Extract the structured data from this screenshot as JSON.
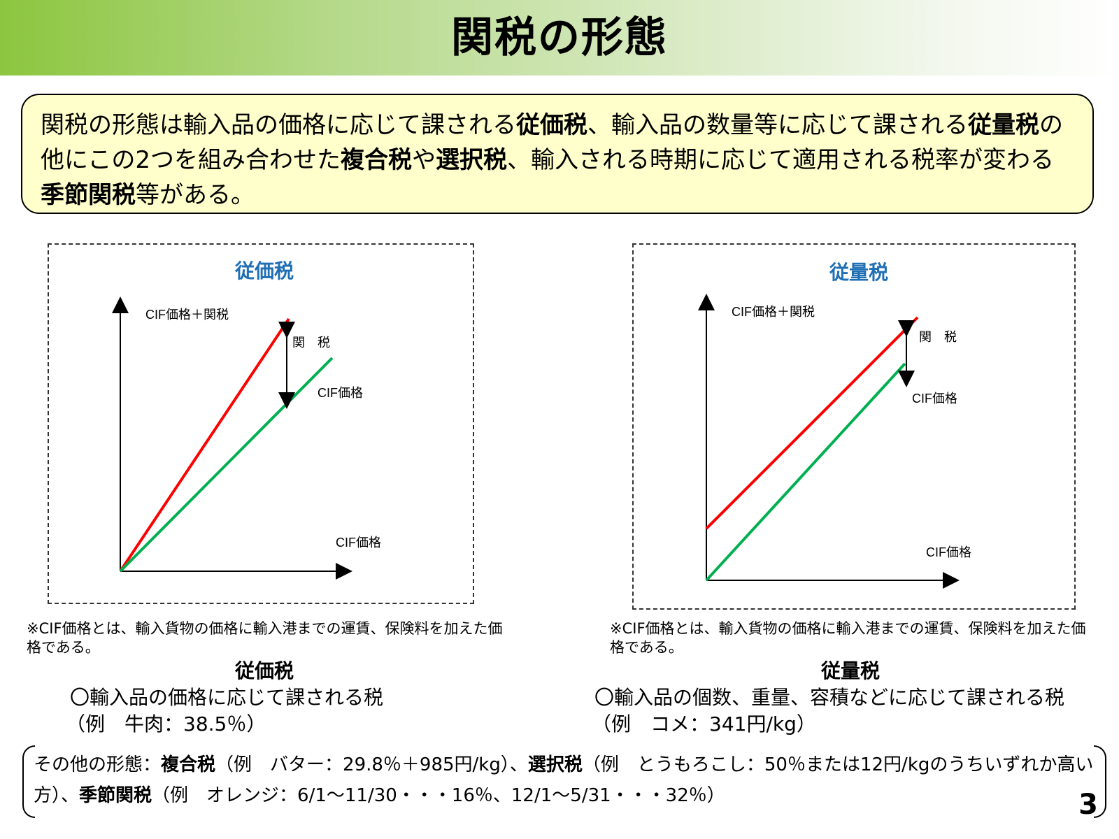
{
  "header": {
    "title": "関税の形態"
  },
  "summary": {
    "parts": [
      "関税の形態は輸入品の価格に応じて課される",
      "従価税",
      "、輸入品の数量等に応じて課される",
      "従量税",
      "の他にこの2つを組み合わせた",
      "複合税",
      "や",
      "選択税",
      "、輸入される時期に応じて適用される税率が変わる",
      "季節関税",
      "等がある。"
    ]
  },
  "panels": [
    {
      "title": "従価税",
      "y_axis_label": "CIF価格＋関税",
      "x_axis_label": "CIF価格",
      "tax_label": "関　税",
      "cif_line_label": "CIF価格",
      "note": "※CIF価格とは、輸入貨物の価格に輸入港までの運賃、保険料を加えた価格である。",
      "desc_title": "従価税",
      "desc_line1": "〇輸入品の価格に応じて課される税",
      "desc_line2": "（例　牛肉：38.5％）"
    },
    {
      "title": "従量税",
      "y_axis_label": "CIF価格＋関税",
      "x_axis_label": "CIF価格",
      "tax_label": "関　税",
      "cif_line_label": "CIF価格",
      "note": "※CIF価格とは、輸入貨物の価格に輸入港までの運賃、保険料を加えた価格である。",
      "desc_title": "従量税",
      "desc_line1": "〇輸入品の個数、重量、容積などに応じて課される税",
      "desc_line2": "（例　コメ：341円/kg）"
    }
  ],
  "bottom": {
    "parts": [
      "その他の形態：",
      "複合税",
      "（例　バター：29.8％＋985円/kg）、",
      "選択税",
      "（例　とうもろこし：50％または12円/kgのうちいずれか高い方）、",
      "季節関税",
      "（例　オレンジ：6/1～11/30・・・16％、12/1～5/31・・・32％）"
    ]
  },
  "page_number": "3",
  "colors": {
    "tax_line": "#ff0000",
    "cif_line": "#00b050",
    "panel_title": "#1f6fb5",
    "summary_bg": "#ffffcc",
    "header_green": "#8cc63f"
  }
}
